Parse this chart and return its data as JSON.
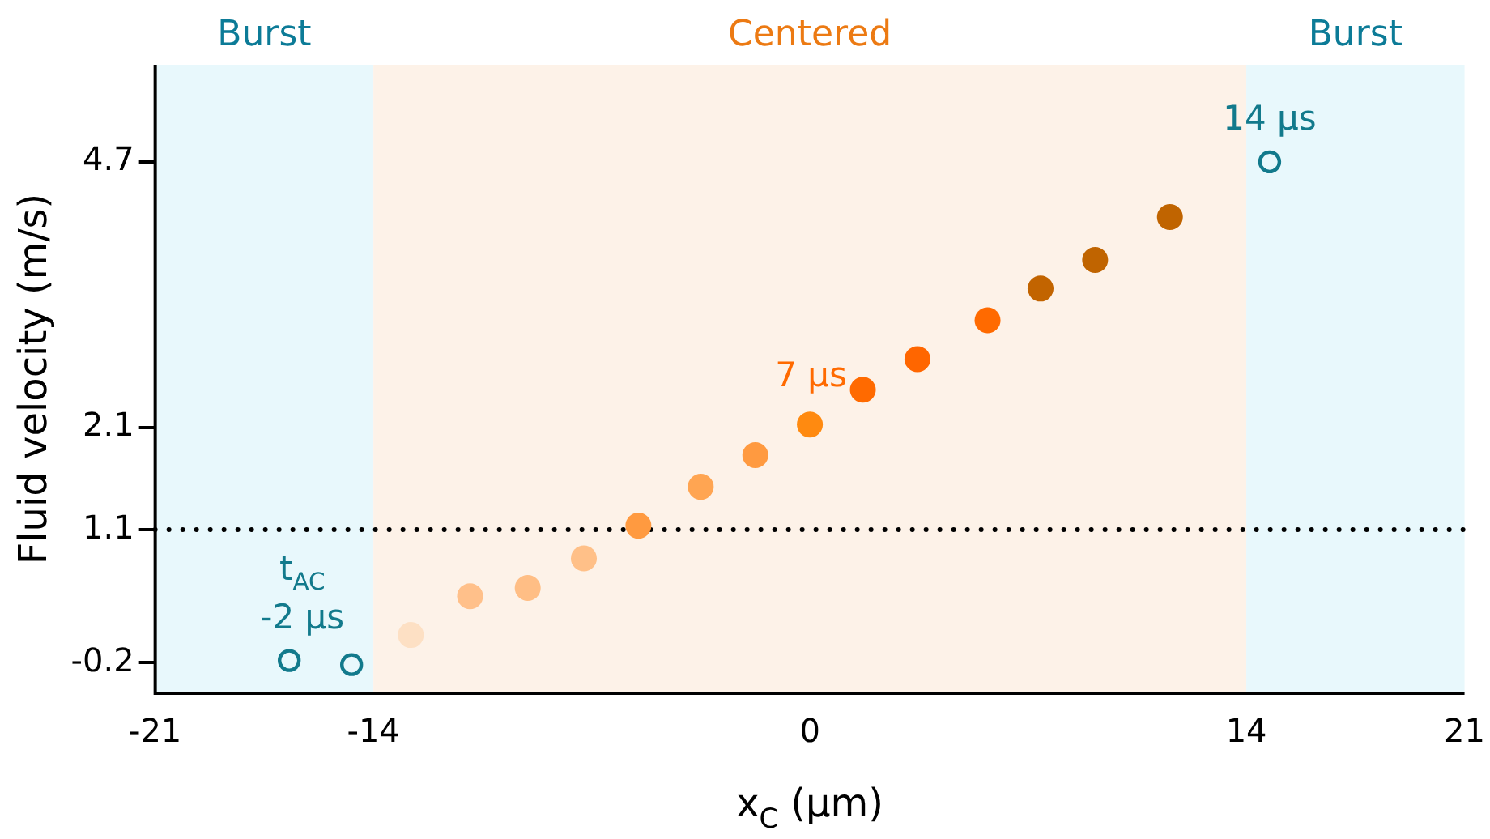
{
  "chart_data": {
    "type": "scatter",
    "xlabel": "x$_{C}$ (μm)",
    "ylabel": "Fluid velocity (m/s)",
    "xlim": [
      -21,
      21
    ],
    "xticks": [
      -21,
      -14,
      0,
      14,
      21
    ],
    "ylim": [
      -0.5,
      5.65
    ],
    "yticks": [
      -0.2,
      1.1,
      2.1,
      4.7
    ],
    "grid": false,
    "legend": false,
    "marker": "circle",
    "series": [
      {
        "color": "#127a8c",
        "x": [
          -16.7,
          -14.7,
          14.75
        ],
        "values": [
          -0.18,
          -0.22,
          4.7
        ]
      },
      {
        "colors": [
          "#fde0c4",
          "#ffc08a",
          "#ffbe85",
          "#ffc088",
          "#ff9a40",
          "#ffa552",
          "#ff9a40",
          "#ff8a10",
          "#ff6a00",
          "#ff6600",
          "#ff6a00",
          "#c26400",
          "#c06400",
          "#c06400"
        ],
        "x": [
          -12.8,
          -10.9,
          -9.05,
          -7.25,
          -5.5,
          -3.5,
          -1.75,
          0,
          1.7,
          3.45,
          5.7,
          7.4,
          9.15,
          11.55
        ],
        "values": [
          0.07,
          0.45,
          0.53,
          0.82,
          1.14,
          1.52,
          1.83,
          2.13,
          2.47,
          2.77,
          3.15,
          3.46,
          3.74,
          4.16
        ]
      }
    ],
    "bands": [
      {
        "axis": "x",
        "from": -21,
        "to": -14,
        "label": "Burst",
        "color": "#e8f8fc"
      },
      {
        "axis": "x",
        "from": -14,
        "to": 14,
        "label": "Centered",
        "color": "#fdf2e8"
      },
      {
        "axis": "x",
        "from": 14,
        "to": 21,
        "label": "Burst",
        "color": "#e8f8fc"
      }
    ],
    "ref_lines": [
      {
        "axis": "y",
        "value": 1.1,
        "color": "#000000",
        "line_style": "dotted"
      }
    ],
    "annotations": [
      {
        "text": "-2 μs",
        "x": -16.7,
        "y": -0.18
      },
      {
        "text": "t$_{AC}$",
        "x": -16.7,
        "y": -0.18
      },
      {
        "text": "7 μs",
        "x": 1.7,
        "y": 2.47
      },
      {
        "text": "14 μs",
        "x": 14.75,
        "y": 4.7
      }
    ]
  }
}
